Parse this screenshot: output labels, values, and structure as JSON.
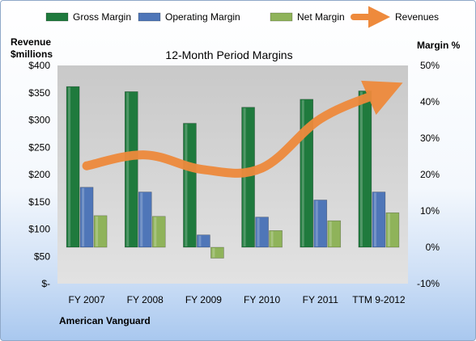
{
  "chart_data": {
    "type": "bar",
    "title": "12-Month Period Margins",
    "company": "American Vanguard",
    "left_axis_title": [
      "Revenue",
      "$millions"
    ],
    "right_axis_title": "Margin %",
    "categories": [
      "FY 2007",
      "FY 2008",
      "FY 2009",
      "FY 2010",
      "FY 2011",
      "TTM 9-2012"
    ],
    "left_axis": {
      "min": 0,
      "max": 400,
      "step": 50,
      "ticks": [
        "$-",
        "$50",
        "$100",
        "$150",
        "$200",
        "$250",
        "$300",
        "$350",
        "$400"
      ]
    },
    "right_axis": {
      "min": -10,
      "max": 50,
      "step": 10,
      "ticks": [
        "-10%",
        "0%",
        "10%",
        "20%",
        "30%",
        "40%",
        "50%"
      ]
    },
    "series": [
      {
        "name": "Gross Margin",
        "kind": "bar",
        "axis": "right",
        "unit": "%",
        "color": "#1f7a3d",
        "values": [
          44.2,
          42.8,
          34.1,
          38.5,
          40.7,
          43.0
        ]
      },
      {
        "name": "Operating Margin",
        "kind": "bar",
        "axis": "right",
        "unit": "%",
        "color": "#4f76b8",
        "values": [
          16.5,
          15.2,
          3.4,
          8.3,
          13.0,
          15.2
        ]
      },
      {
        "name": "Net Margin",
        "kind": "bar",
        "axis": "right",
        "unit": "%",
        "color": "#8fb35a",
        "values": [
          8.7,
          8.5,
          -3.0,
          4.6,
          7.3,
          9.5
        ]
      },
      {
        "name": "Revenues",
        "kind": "line",
        "axis": "left",
        "unit": "$M",
        "color": "#ee8a3c",
        "values": [
          216,
          236,
          209,
          212,
          302,
          349
        ]
      }
    ],
    "legend_position": "top",
    "grid": false
  }
}
